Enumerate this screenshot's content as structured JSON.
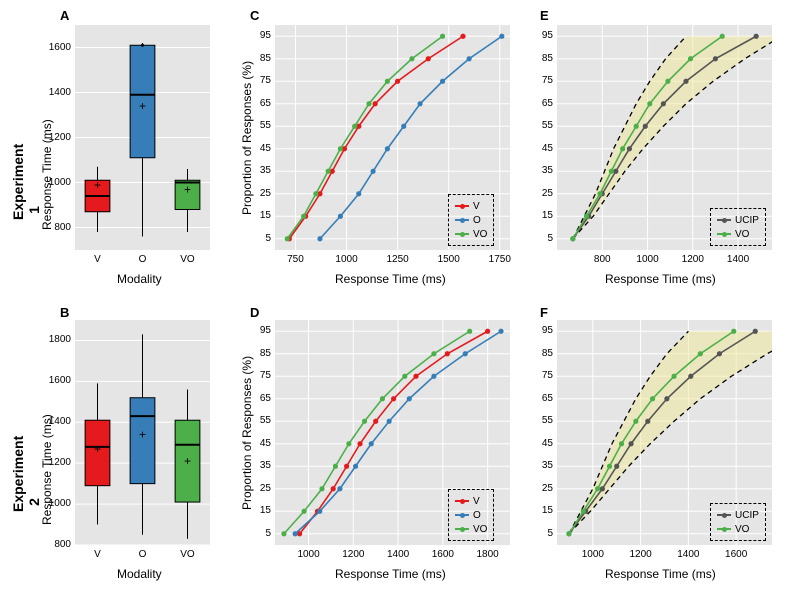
{
  "rows": [
    {
      "label": "Experiment 1"
    },
    {
      "label": "Experiment 2"
    }
  ],
  "colors": {
    "V": "#e41a1c",
    "O": "#377eb8",
    "VO": "#4daf4a",
    "UCIP": "#555555",
    "panel_bg": "#e5e5e5",
    "grid": "#ffffff",
    "band_fill": "#f0e68c",
    "band_fill_opacity": 0.45
  },
  "label_fontsize": 12,
  "tick_fontsize": 10,
  "panel_letter_fontsize": 13,
  "panelA": {
    "letter": "A",
    "type": "boxplot",
    "ylabel": "Response Time (ms)",
    "xlabel": "Modality",
    "categories": [
      "V",
      "O",
      "VO"
    ],
    "ylim": [
      700,
      1700
    ],
    "yticks": [
      800,
      1000,
      1200,
      1400,
      1600
    ],
    "box_fill": [
      "#e41a1c",
      "#377eb8",
      "#4daf4a"
    ],
    "box_line": "#000000",
    "mean_marker": "+",
    "boxes": [
      {
        "min": 780,
        "q1": 870,
        "median": 940,
        "q3": 1010,
        "max": 1070,
        "mean": 990,
        "outliers": []
      },
      {
        "min": 760,
        "q1": 1110,
        "median": 1390,
        "q3": 1610,
        "max": 1620,
        "mean": 1340,
        "outliers": [
          1610
        ]
      },
      {
        "min": 780,
        "q1": 880,
        "median": 1000,
        "q3": 1010,
        "max": 1060,
        "mean": 970,
        "outliers": []
      }
    ]
  },
  "panelB": {
    "letter": "B",
    "type": "boxplot",
    "ylabel": "Response Time (ms)",
    "xlabel": "Modality",
    "categories": [
      "V",
      "O",
      "VO"
    ],
    "ylim": [
      800,
      1900
    ],
    "yticks": [
      800,
      1000,
      1200,
      1400,
      1600,
      1800
    ],
    "box_fill": [
      "#e41a1c",
      "#377eb8",
      "#4daf4a"
    ],
    "box_line": "#000000",
    "mean_marker": "+",
    "boxes": [
      {
        "min": 900,
        "q1": 1090,
        "median": 1280,
        "q3": 1410,
        "max": 1590,
        "mean": 1270,
        "outliers": []
      },
      {
        "min": 850,
        "q1": 1100,
        "median": 1430,
        "q3": 1520,
        "max": 1830,
        "mean": 1340,
        "outliers": []
      },
      {
        "min": 830,
        "q1": 1010,
        "median": 1290,
        "q3": 1410,
        "max": 1560,
        "mean": 1210,
        "outliers": []
      }
    ]
  },
  "panelC": {
    "letter": "C",
    "type": "line",
    "ylabel": "Proportion of Responses (%)",
    "xlabel": "Response Time (ms)",
    "xlim": [
      650,
      1800
    ],
    "xticks": [
      750,
      1000,
      1250,
      1500,
      1750
    ],
    "ylim": [
      0,
      100
    ],
    "yticks": [
      5,
      15,
      25,
      35,
      45,
      55,
      65,
      75,
      85,
      95
    ],
    "series": [
      {
        "name": "V",
        "color": "#e41a1c",
        "x": [
          720,
          800,
          870,
          930,
          990,
          1060,
          1140,
          1250,
          1400,
          1570
        ],
        "y": [
          5,
          15,
          25,
          35,
          45,
          55,
          65,
          75,
          85,
          95
        ]
      },
      {
        "name": "O",
        "color": "#377eb8",
        "x": [
          870,
          970,
          1060,
          1130,
          1200,
          1280,
          1360,
          1470,
          1600,
          1760
        ],
        "y": [
          5,
          15,
          25,
          35,
          45,
          55,
          65,
          75,
          85,
          95
        ]
      },
      {
        "name": "VO",
        "color": "#4daf4a",
        "x": [
          710,
          790,
          850,
          910,
          970,
          1040,
          1110,
          1200,
          1320,
          1470
        ],
        "y": [
          5,
          15,
          25,
          35,
          45,
          55,
          65,
          75,
          85,
          95
        ]
      }
    ],
    "legend": {
      "items": [
        "V",
        "O",
        "VO"
      ],
      "pos": "lower-right"
    }
  },
  "panelD": {
    "letter": "D",
    "type": "line",
    "ylabel": "Proportion of Responses (%)",
    "xlabel": "Response Time (ms)",
    "xlim": [
      850,
      1900
    ],
    "xticks": [
      1000,
      1200,
      1400,
      1600,
      1800
    ],
    "ylim": [
      0,
      100
    ],
    "yticks": [
      5,
      15,
      25,
      35,
      45,
      55,
      65,
      75,
      85,
      95
    ],
    "series": [
      {
        "name": "V",
        "color": "#e41a1c",
        "x": [
          960,
          1040,
          1110,
          1170,
          1230,
          1300,
          1380,
          1480,
          1620,
          1800
        ],
        "y": [
          5,
          15,
          25,
          35,
          45,
          55,
          65,
          75,
          85,
          95
        ]
      },
      {
        "name": "O",
        "color": "#377eb8",
        "x": [
          940,
          1050,
          1140,
          1210,
          1280,
          1360,
          1450,
          1560,
          1700,
          1860
        ],
        "y": [
          5,
          15,
          25,
          35,
          45,
          55,
          65,
          75,
          85,
          95
        ]
      },
      {
        "name": "VO",
        "color": "#4daf4a",
        "x": [
          890,
          980,
          1060,
          1120,
          1180,
          1250,
          1330,
          1430,
          1560,
          1720
        ],
        "y": [
          5,
          15,
          25,
          35,
          45,
          55,
          65,
          75,
          85,
          95
        ]
      }
    ],
    "legend": {
      "items": [
        "V",
        "O",
        "VO"
      ],
      "pos": "lower-right"
    }
  },
  "panelE": {
    "letter": "E",
    "type": "line-with-band",
    "ylabel": "",
    "xlabel": "Response Time (ms)",
    "xlim": [
      600,
      1550
    ],
    "xticks": [
      800,
      1000,
      1200,
      1400
    ],
    "ylim": [
      0,
      100
    ],
    "yticks": [
      5,
      15,
      25,
      35,
      45,
      55,
      65,
      75,
      85,
      95
    ],
    "band": {
      "x": [
        670,
        740,
        800,
        860,
        920,
        990,
        1070,
        1170,
        1300,
        1480
      ],
      "lower": [
        670,
        720,
        770,
        810,
        850,
        900,
        950,
        1010,
        1080,
        1170
      ],
      "upper": [
        670,
        760,
        830,
        900,
        980,
        1070,
        1170,
        1290,
        1430,
        1590
      ],
      "dash": true
    },
    "series": [
      {
        "name": "UCIP",
        "color": "#555555",
        "x": [
          670,
          740,
          800,
          860,
          920,
          990,
          1070,
          1170,
          1300,
          1480
        ],
        "y": [
          5,
          15,
          25,
          35,
          45,
          55,
          65,
          75,
          85,
          95
        ]
      },
      {
        "name": "VO",
        "color": "#4daf4a",
        "x": [
          670,
          730,
          790,
          840,
          890,
          950,
          1010,
          1090,
          1190,
          1330
        ],
        "y": [
          5,
          15,
          25,
          35,
          45,
          55,
          65,
          75,
          85,
          95
        ]
      }
    ],
    "legend": {
      "items": [
        "UCIP",
        "VO"
      ],
      "pos": "lower-right"
    }
  },
  "panelF": {
    "letter": "F",
    "type": "line-with-band",
    "ylabel": "",
    "xlabel": "Response Time (ms)",
    "xlim": [
      850,
      1750
    ],
    "xticks": [
      1000,
      1200,
      1400,
      1600
    ],
    "ylim": [
      0,
      100
    ],
    "yticks": [
      5,
      15,
      25,
      35,
      45,
      55,
      65,
      75,
      85,
      95
    ],
    "band": {
      "x": [
        900,
        970,
        1040,
        1100,
        1160,
        1230,
        1310,
        1410,
        1530,
        1680
      ],
      "lower": [
        900,
        950,
        1000,
        1040,
        1080,
        1130,
        1180,
        1240,
        1310,
        1400
      ],
      "upper": [
        900,
        990,
        1070,
        1150,
        1240,
        1340,
        1450,
        1580,
        1730,
        1900
      ],
      "dash": true
    },
    "series": [
      {
        "name": "UCIP",
        "color": "#555555",
        "x": [
          900,
          970,
          1040,
          1100,
          1160,
          1230,
          1310,
          1410,
          1530,
          1680
        ],
        "y": [
          5,
          15,
          25,
          35,
          45,
          55,
          65,
          75,
          85,
          95
        ]
      },
      {
        "name": "VO",
        "color": "#4daf4a",
        "x": [
          900,
          960,
          1020,
          1070,
          1120,
          1180,
          1250,
          1340,
          1450,
          1590
        ],
        "y": [
          5,
          15,
          25,
          35,
          45,
          55,
          65,
          75,
          85,
          95
        ]
      }
    ],
    "legend": {
      "items": [
        "UCIP",
        "VO"
      ],
      "pos": "lower-right"
    }
  }
}
